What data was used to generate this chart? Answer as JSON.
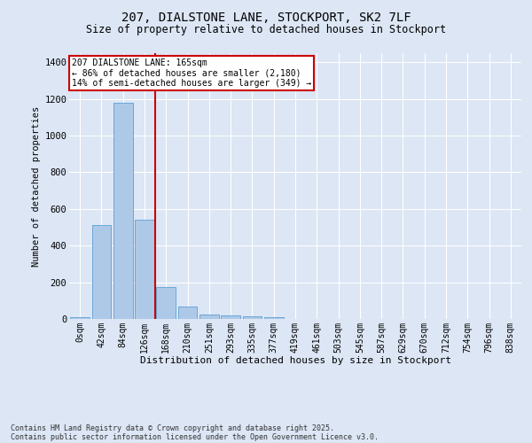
{
  "title1": "207, DIALSTONE LANE, STOCKPORT, SK2 7LF",
  "title2": "Size of property relative to detached houses in Stockport",
  "xlabel": "Distribution of detached houses by size in Stockport",
  "ylabel": "Number of detached properties",
  "footnote1": "Contains HM Land Registry data © Crown copyright and database right 2025.",
  "footnote2": "Contains public sector information licensed under the Open Government Licence v3.0.",
  "annotation_line1": "207 DIALSTONE LANE: 165sqm",
  "annotation_line2": "← 86% of detached houses are smaller (2,180)",
  "annotation_line3": "14% of semi-detached houses are larger (349) →",
  "bar_labels": [
    "0sqm",
    "42sqm",
    "84sqm",
    "126sqm",
    "168sqm",
    "210sqm",
    "251sqm",
    "293sqm",
    "335sqm",
    "377sqm",
    "419sqm",
    "461sqm",
    "503sqm",
    "545sqm",
    "587sqm",
    "629sqm",
    "670sqm",
    "712sqm",
    "754sqm",
    "796sqm",
    "838sqm"
  ],
  "bar_values": [
    10,
    510,
    1180,
    540,
    175,
    70,
    25,
    20,
    15,
    10,
    0,
    0,
    0,
    0,
    0,
    0,
    0,
    0,
    0,
    0,
    0
  ],
  "bar_color": "#aec9e8",
  "bar_edge_color": "#5a9fd4",
  "property_line_color": "#cc0000",
  "ylim": [
    0,
    1450
  ],
  "yticks": [
    0,
    200,
    400,
    600,
    800,
    1000,
    1200,
    1400
  ],
  "bg_color": "#dce6f5",
  "fig_bg_color": "#dce6f5",
  "annotation_box_color": "#cc0000"
}
